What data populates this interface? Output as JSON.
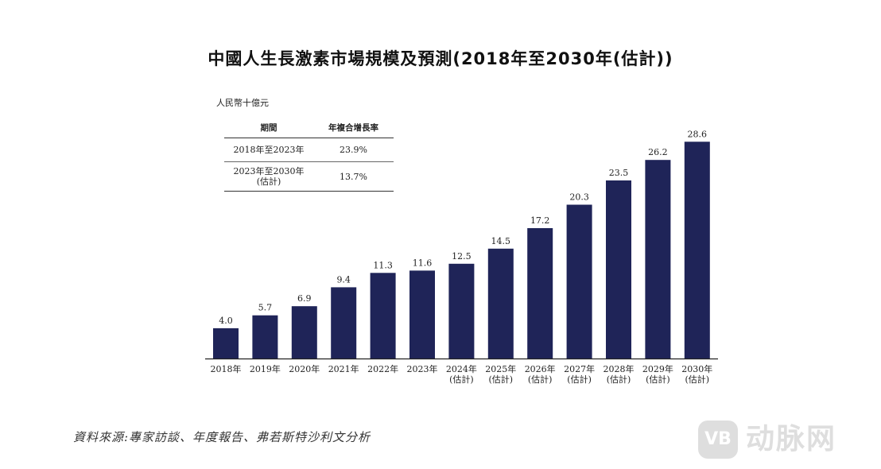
{
  "chart_data": {
    "type": "bar",
    "title": "中國人生長激素市場規模及預測(2018年至2030年(估計))",
    "unit_label": "人民幣十億元",
    "categories": [
      [
        "2018年"
      ],
      [
        "2019年"
      ],
      [
        "2020年"
      ],
      [
        "2021年"
      ],
      [
        "2022年"
      ],
      [
        "2023年"
      ],
      [
        "2024年",
        "(估計)"
      ],
      [
        "2025年",
        "(估計)"
      ],
      [
        "2026年",
        "(估計)"
      ],
      [
        "2027年",
        "(估計)"
      ],
      [
        "2028年",
        "(估計)"
      ],
      [
        "2029年",
        "(估計)"
      ],
      [
        "2030年",
        "(估計)"
      ]
    ],
    "values": [
      4.0,
      5.7,
      6.9,
      9.4,
      11.3,
      11.6,
      12.5,
      14.5,
      17.2,
      20.3,
      23.5,
      26.2,
      28.6
    ],
    "value_labels": [
      "4.0",
      "5.7",
      "6.9",
      "9.4",
      "11.3",
      "11.6",
      "12.5",
      "14.5",
      "17.2",
      "20.3",
      "23.5",
      "26.2",
      "28.6"
    ],
    "ylim": [
      0,
      30
    ],
    "grid": false,
    "bar_color": "#1f2458",
    "cagr_table": {
      "headers": [
        "期間",
        "年複合增長率"
      ],
      "rows": [
        {
          "period": [
            "2018年至2023年"
          ],
          "rate": "23.9%"
        },
        {
          "period": [
            "2023年至2030年",
            "(估計)"
          ],
          "rate": "13.7%"
        }
      ]
    }
  },
  "source": "資料來源:專家訪談、年度報告、弗若斯特沙利文分析",
  "watermark": {
    "badge": "VB",
    "text": "动脉网"
  }
}
